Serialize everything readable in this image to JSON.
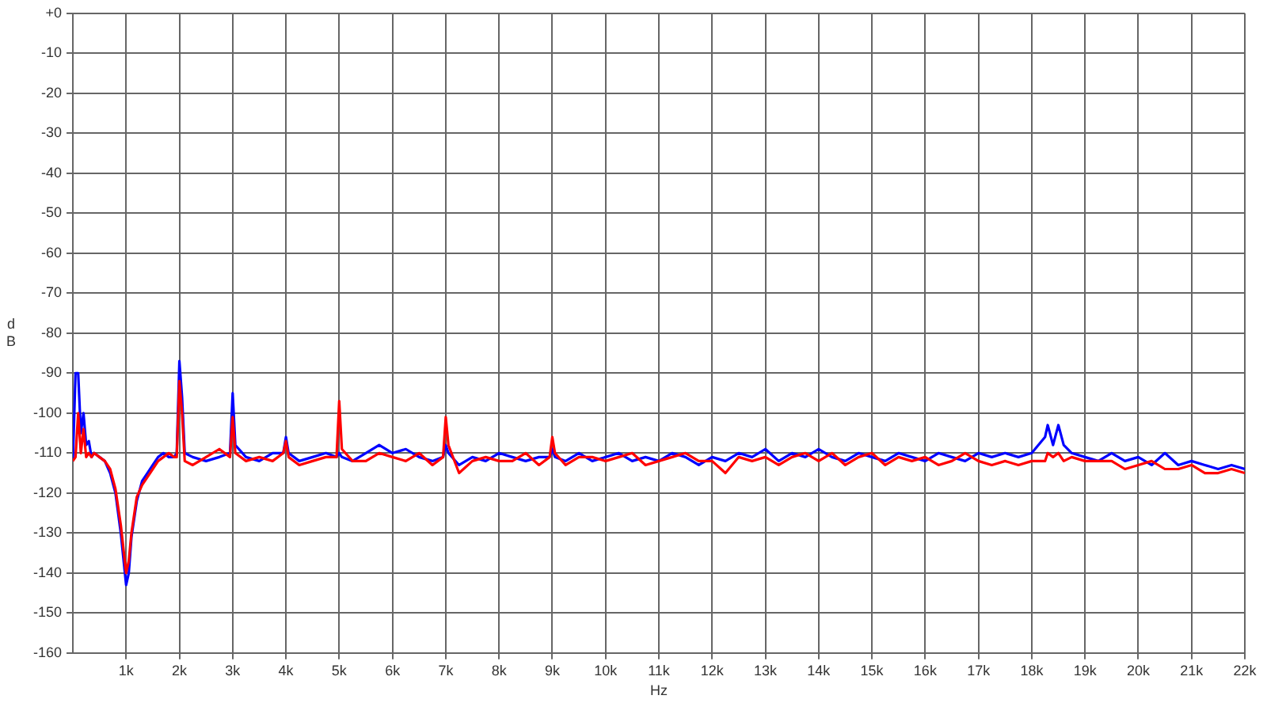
{
  "chart_data": {
    "type": "line",
    "xlabel": "Hz",
    "ylabel": "dB",
    "x": [
      0,
      50,
      100,
      150,
      200,
      250,
      300,
      350,
      400,
      500,
      600,
      700,
      800,
      900,
      1000,
      1050,
      1100,
      1200,
      1300,
      1400,
      1500,
      1600,
      1700,
      1800,
      1900,
      1950,
      2000,
      2050,
      2100,
      2250,
      2500,
      2750,
      2950,
      3000,
      3050,
      3250,
      3500,
      3750,
      3950,
      4000,
      4050,
      4250,
      4500,
      4750,
      4950,
      5000,
      5050,
      5250,
      5500,
      5750,
      6000,
      6250,
      6500,
      6750,
      6950,
      7000,
      7050,
      7250,
      7500,
      7750,
      8000,
      8250,
      8500,
      8750,
      8950,
      9000,
      9050,
      9250,
      9500,
      9750,
      10000,
      10250,
      10500,
      10750,
      11000,
      11250,
      11500,
      11750,
      12000,
      12250,
      12500,
      12750,
      13000,
      13250,
      13500,
      13750,
      14000,
      14250,
      14500,
      14750,
      15000,
      15250,
      15500,
      15750,
      16000,
      16250,
      16500,
      16750,
      17000,
      17250,
      17500,
      17750,
      18000,
      18250,
      18300,
      18400,
      18500,
      18600,
      18750,
      19000,
      19250,
      19500,
      19750,
      20000,
      20250,
      20500,
      20750,
      21000,
      21250,
      21500,
      21750,
      22000
    ],
    "series": [
      {
        "color": "#0000ff",
        "values": [
          -112,
          -90,
          -90,
          -105,
          -100,
          -108,
          -107,
          -111,
          -110,
          -111,
          -112,
          -115,
          -120,
          -130,
          -143,
          -140,
          -131,
          -122,
          -117,
          -115,
          -113,
          -111,
          -110,
          -111,
          -111,
          -110,
          -87,
          -96,
          -110,
          -111,
          -112,
          -111,
          -110,
          -95,
          -108,
          -111,
          -112,
          -110,
          -110,
          -106,
          -110,
          -112,
          -111,
          -110,
          -111,
          -110,
          -111,
          -112,
          -110,
          -108,
          -110,
          -109,
          -111,
          -112,
          -111,
          -108,
          -110,
          -113,
          -111,
          -112,
          -110,
          -111,
          -112,
          -111,
          -111,
          -109,
          -111,
          -112,
          -110,
          -112,
          -111,
          -110,
          -112,
          -111,
          -112,
          -110,
          -111,
          -113,
          -111,
          -112,
          -110,
          -111,
          -109,
          -112,
          -110,
          -111,
          -109,
          -111,
          -112,
          -110,
          -111,
          -112,
          -110,
          -111,
          -112,
          -110,
          -111,
          -112,
          -110,
          -111,
          -110,
          -111,
          -110,
          -106,
          -103,
          -108,
          -103,
          -108,
          -110,
          -111,
          -112,
          -110,
          -112,
          -111,
          -113,
          -110,
          -113,
          -112,
          -113,
          -114,
          -113,
          -114
        ]
      },
      {
        "color": "#ff0000",
        "values": [
          -112,
          -111,
          -100,
          -110,
          -104,
          -111,
          -110,
          -111,
          -110,
          -111,
          -112,
          -114,
          -119,
          -128,
          -140,
          -137,
          -130,
          -121,
          -118,
          -116,
          -114,
          -112,
          -111,
          -110,
          -111,
          -111,
          -92,
          -100,
          -112,
          -113,
          -111,
          -109,
          -111,
          -101,
          -110,
          -112,
          -111,
          -112,
          -110,
          -107,
          -111,
          -113,
          -112,
          -111,
          -111,
          -97,
          -109,
          -112,
          -112,
          -110,
          -111,
          -112,
          -110,
          -113,
          -111,
          -101,
          -108,
          -115,
          -112,
          -111,
          -112,
          -112,
          -110,
          -113,
          -111,
          -106,
          -110,
          -113,
          -111,
          -111,
          -112,
          -111,
          -110,
          -113,
          -112,
          -111,
          -110,
          -112,
          -112,
          -115,
          -111,
          -112,
          -111,
          -113,
          -111,
          -110,
          -112,
          -110,
          -113,
          -111,
          -110,
          -113,
          -111,
          -112,
          -111,
          -113,
          -112,
          -110,
          -112,
          -113,
          -112,
          -113,
          -112,
          -112,
          -110,
          -111,
          -110,
          -112,
          -111,
          -112,
          -112,
          -112,
          -114,
          -113,
          -112,
          -114,
          -114,
          -113,
          -115,
          -115,
          -114,
          -115
        ]
      }
    ],
    "xlim": [
      0,
      22000
    ],
    "xticks": [
      {
        "value": 1000,
        "label": "1k"
      },
      {
        "value": 2000,
        "label": "2k"
      },
      {
        "value": 3000,
        "label": "3k"
      },
      {
        "value": 4000,
        "label": "4k"
      },
      {
        "value": 5000,
        "label": "5k"
      },
      {
        "value": 6000,
        "label": "6k"
      },
      {
        "value": 7000,
        "label": "7k"
      },
      {
        "value": 8000,
        "label": "8k"
      },
      {
        "value": 9000,
        "label": "9k"
      },
      {
        "value": 10000,
        "label": "10k"
      },
      {
        "value": 11000,
        "label": "11k"
      },
      {
        "value": 12000,
        "label": "12k"
      },
      {
        "value": 13000,
        "label": "13k"
      },
      {
        "value": 14000,
        "label": "14k"
      },
      {
        "value": 15000,
        "label": "15k"
      },
      {
        "value": 16000,
        "label": "16k"
      },
      {
        "value": 17000,
        "label": "17k"
      },
      {
        "value": 18000,
        "label": "18k"
      },
      {
        "value": 19000,
        "label": "19k"
      },
      {
        "value": 20000,
        "label": "20k"
      },
      {
        "value": 21000,
        "label": "21k"
      },
      {
        "value": 22000,
        "label": "22k"
      }
    ],
    "ylim": [
      -160,
      0
    ],
    "yticks": [
      {
        "value": 0,
        "label": "+0"
      },
      -10,
      -20,
      -30,
      -40,
      -50,
      -60,
      -70,
      -80,
      -90,
      -100,
      -110,
      -120,
      -130,
      -140,
      -150,
      -160
    ],
    "grid": true
  }
}
